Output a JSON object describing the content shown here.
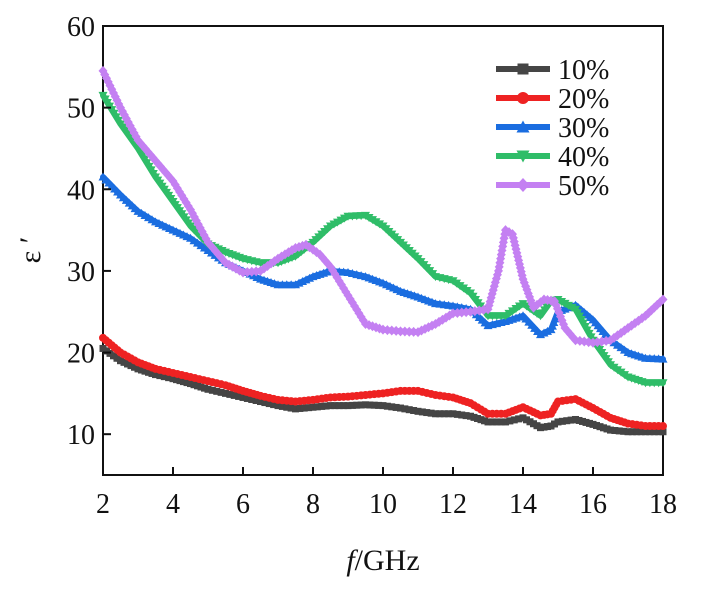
{
  "chart_data": {
    "type": "line",
    "xlabel_italic": "f",
    "xlabel_unit": "/GHz",
    "ylabel": "ε ′",
    "xlim": [
      2,
      18
    ],
    "ylim": [
      5,
      60
    ],
    "xticks": [
      2,
      4,
      6,
      8,
      10,
      12,
      14,
      16,
      18
    ],
    "yticks": [
      10,
      20,
      30,
      40,
      50,
      60
    ],
    "grid": false,
    "legend_position": "top-right",
    "series": [
      {
        "name": "10%",
        "color": "#454545",
        "marker": "square",
        "points": [
          [
            2,
            20.5
          ],
          [
            2.5,
            19
          ],
          [
            3,
            18
          ],
          [
            3.5,
            17.3
          ],
          [
            4,
            16.8
          ],
          [
            4.5,
            16.2
          ],
          [
            5,
            15.5
          ],
          [
            5.5,
            15
          ],
          [
            6,
            14.5
          ],
          [
            6.5,
            14
          ],
          [
            7,
            13.5
          ],
          [
            7.5,
            13.1
          ],
          [
            8,
            13.3
          ],
          [
            8.5,
            13.5
          ],
          [
            9,
            13.5
          ],
          [
            9.5,
            13.6
          ],
          [
            10,
            13.5
          ],
          [
            10.5,
            13.2
          ],
          [
            11,
            12.8
          ],
          [
            11.5,
            12.5
          ],
          [
            12,
            12.5
          ],
          [
            12.5,
            12.2
          ],
          [
            13,
            11.5
          ],
          [
            13.5,
            11.5
          ],
          [
            14,
            12
          ],
          [
            14.5,
            10.8
          ],
          [
            14.8,
            11
          ],
          [
            15,
            11.5
          ],
          [
            15.5,
            11.8
          ],
          [
            16,
            11.2
          ],
          [
            16.5,
            10.5
          ],
          [
            17,
            10.3
          ],
          [
            17.5,
            10.3
          ],
          [
            18,
            10.3
          ]
        ]
      },
      {
        "name": "20%",
        "color": "#ee2222",
        "marker": "circle",
        "points": [
          [
            2,
            21.8
          ],
          [
            2.5,
            20
          ],
          [
            3,
            18.8
          ],
          [
            3.5,
            18
          ],
          [
            4,
            17.5
          ],
          [
            4.5,
            17
          ],
          [
            5,
            16.5
          ],
          [
            5.5,
            16
          ],
          [
            6,
            15.3
          ],
          [
            6.5,
            14.7
          ],
          [
            7,
            14.2
          ],
          [
            7.5,
            14
          ],
          [
            8,
            14.2
          ],
          [
            8.5,
            14.5
          ],
          [
            9,
            14.6
          ],
          [
            9.5,
            14.8
          ],
          [
            10,
            15
          ],
          [
            10.5,
            15.3
          ],
          [
            11,
            15.3
          ],
          [
            11.5,
            14.8
          ],
          [
            12,
            14.5
          ],
          [
            12.5,
            13.8
          ],
          [
            13,
            12.5
          ],
          [
            13.5,
            12.5
          ],
          [
            14,
            13.3
          ],
          [
            14.5,
            12.3
          ],
          [
            14.8,
            12.5
          ],
          [
            15,
            14
          ],
          [
            15.5,
            14.3
          ],
          [
            16,
            13.2
          ],
          [
            16.5,
            12
          ],
          [
            17,
            11.3
          ],
          [
            17.5,
            11
          ],
          [
            18,
            11
          ]
        ]
      },
      {
        "name": "30%",
        "color": "#1a6de0",
        "marker": "triangle-up",
        "points": [
          [
            2,
            41.5
          ],
          [
            2.5,
            39.3
          ],
          [
            3,
            37.3
          ],
          [
            3.5,
            36
          ],
          [
            4,
            35
          ],
          [
            4.5,
            34
          ],
          [
            5,
            32.5
          ],
          [
            5.5,
            31
          ],
          [
            6,
            30
          ],
          [
            6.5,
            29
          ],
          [
            7,
            28.3
          ],
          [
            7.5,
            28.3
          ],
          [
            8,
            29.3
          ],
          [
            8.5,
            30
          ],
          [
            9,
            29.8
          ],
          [
            9.5,
            29.3
          ],
          [
            10,
            28.5
          ],
          [
            10.5,
            27.5
          ],
          [
            11,
            26.8
          ],
          [
            11.5,
            26
          ],
          [
            12,
            25.7
          ],
          [
            12.5,
            25.3
          ],
          [
            13,
            23.3
          ],
          [
            13.5,
            23.8
          ],
          [
            14,
            24.5
          ],
          [
            14.5,
            22.2
          ],
          [
            14.8,
            22.8
          ],
          [
            15,
            25
          ],
          [
            15.5,
            25.8
          ],
          [
            16,
            24
          ],
          [
            16.5,
            21.5
          ],
          [
            17,
            20
          ],
          [
            17.5,
            19.3
          ],
          [
            18,
            19.2
          ]
        ]
      },
      {
        "name": "40%",
        "color": "#2fbd68",
        "marker": "triangle-down",
        "points": [
          [
            2,
            51.5
          ],
          [
            2.5,
            48
          ],
          [
            3,
            45
          ],
          [
            3.5,
            41.5
          ],
          [
            4,
            38.5
          ],
          [
            4.5,
            35.5
          ],
          [
            5,
            33.3
          ],
          [
            5.5,
            32.3
          ],
          [
            6,
            31.5
          ],
          [
            6.5,
            31
          ],
          [
            7,
            31
          ],
          [
            7.5,
            31.8
          ],
          [
            8,
            33.5
          ],
          [
            8.5,
            35.5
          ],
          [
            9,
            36.7
          ],
          [
            9.5,
            36.8
          ],
          [
            10,
            35.5
          ],
          [
            10.5,
            33.5
          ],
          [
            11,
            31.5
          ],
          [
            11.5,
            29.3
          ],
          [
            12,
            28.8
          ],
          [
            12.5,
            27.3
          ],
          [
            13,
            24.5
          ],
          [
            13.5,
            24.5
          ],
          [
            14,
            26
          ],
          [
            14.5,
            24.5
          ],
          [
            14.8,
            26.3
          ],
          [
            15,
            26.5
          ],
          [
            15.5,
            25.3
          ],
          [
            16,
            21.5
          ],
          [
            16.5,
            18.5
          ],
          [
            17,
            17
          ],
          [
            17.5,
            16.3
          ],
          [
            18,
            16.3
          ]
        ]
      },
      {
        "name": "50%",
        "color": "#c480f2",
        "marker": "diamond",
        "points": [
          [
            2,
            54.5
          ],
          [
            2.5,
            50
          ],
          [
            3,
            46
          ],
          [
            3.5,
            43.5
          ],
          [
            4,
            41
          ],
          [
            4.5,
            37.5
          ],
          [
            5,
            33.5
          ],
          [
            5.5,
            31
          ],
          [
            6,
            29.8
          ],
          [
            6.5,
            30
          ],
          [
            7,
            31.5
          ],
          [
            7.5,
            32.8
          ],
          [
            7.8,
            33.2
          ],
          [
            8.2,
            32
          ],
          [
            8.5,
            30.5
          ],
          [
            9,
            27
          ],
          [
            9.5,
            23.5
          ],
          [
            10,
            22.8
          ],
          [
            10.5,
            22.6
          ],
          [
            11,
            22.5
          ],
          [
            11.5,
            23.5
          ],
          [
            12,
            24.8
          ],
          [
            12.5,
            25
          ],
          [
            13,
            25.3
          ],
          [
            13.3,
            30
          ],
          [
            13.5,
            35
          ],
          [
            13.7,
            34.5
          ],
          [
            14,
            29
          ],
          [
            14.3,
            25.5
          ],
          [
            14.6,
            26.5
          ],
          [
            14.9,
            26.3
          ],
          [
            15.2,
            23
          ],
          [
            15.5,
            21.5
          ],
          [
            16,
            21.2
          ],
          [
            16.5,
            21.5
          ],
          [
            17,
            23
          ],
          [
            17.5,
            24.5
          ],
          [
            18,
            26.5
          ]
        ]
      }
    ]
  }
}
